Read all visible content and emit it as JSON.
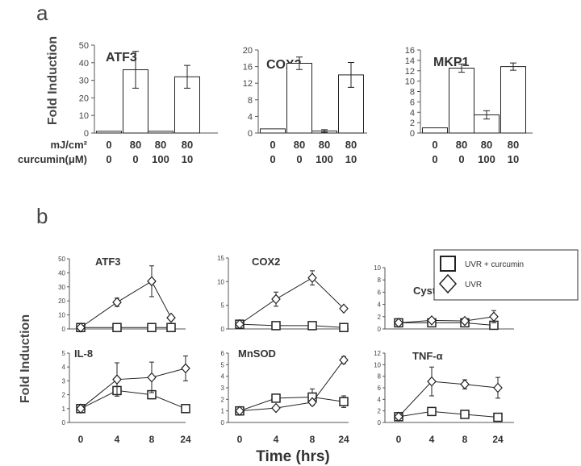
{
  "panel_a_label": "a",
  "panel_b_label": "b",
  "ylabel_a": "Fold Induction",
  "ylabel_b": "Fold Induction",
  "row_label_dose": "mJ/cm²",
  "row_label_curcumin": "curcumin(μM)",
  "dose_values": [
    "0",
    "80",
    "80",
    "80"
  ],
  "curcumin_values": [
    "0",
    "0",
    "100",
    "10"
  ],
  "xlabel_b": "Time (hrs)",
  "legend": {
    "curcumin": "UVR + curcumin",
    "uvr": "UVR"
  },
  "chart_data": [
    {
      "type": "bar",
      "title": "ATF3",
      "categories": [
        "0/0",
        "80/0",
        "80/100",
        "80/10"
      ],
      "values": [
        1,
        36,
        1,
        32
      ],
      "errors": [
        0,
        10.5,
        0,
        6.5
      ],
      "ylim": [
        0,
        50
      ],
      "yticks": [
        0,
        10,
        20,
        30,
        40,
        50
      ],
      "grid": false
    },
    {
      "type": "bar",
      "title": "COX2",
      "categories": [
        "0/0",
        "80/0",
        "80/100",
        "80/10"
      ],
      "values": [
        1,
        16.8,
        0.5,
        14
      ],
      "errors": [
        0,
        1.5,
        0.3,
        3
      ],
      "ylim": [
        0,
        20
      ],
      "yticks": [
        0,
        4,
        8,
        12,
        16,
        20
      ],
      "grid": false
    },
    {
      "type": "bar",
      "title": "MKP1",
      "categories": [
        "0/0",
        "80/0",
        "80/100",
        "80/10"
      ],
      "values": [
        1,
        12.5,
        3.5,
        12.8
      ],
      "errors": [
        0,
        0.8,
        0.8,
        0.7
      ],
      "ylim": [
        0,
        16
      ],
      "yticks": [
        0,
        2,
        4,
        6,
        8,
        10,
        12,
        14,
        16
      ],
      "grid": false
    },
    {
      "type": "line",
      "title": "ATF3",
      "x": [
        "0",
        "4",
        "8",
        "24"
      ],
      "ylim": [
        0,
        50
      ],
      "yticks": [
        0,
        10,
        20,
        30,
        40,
        50
      ],
      "series": [
        {
          "name": "UVR + curcumin",
          "values": [
            1,
            1,
            1,
            1
          ],
          "errors": [
            0,
            0,
            0,
            0
          ]
        },
        {
          "name": "UVR",
          "values": [
            1,
            19,
            34,
            8
          ],
          "errors": [
            0,
            3,
            11,
            0
          ]
        }
      ]
    },
    {
      "type": "line",
      "title": "COX2",
      "x": [
        "0",
        "4",
        "8",
        "24"
      ],
      "ylim": [
        0,
        15
      ],
      "yticks": [
        0,
        5,
        10,
        15
      ],
      "series": [
        {
          "name": "UVR + curcumin",
          "values": [
            1,
            0.7,
            0.7,
            0.3
          ],
          "errors": [
            0,
            0,
            0,
            0
          ]
        },
        {
          "name": "UVR",
          "values": [
            1,
            6.3,
            10.8,
            4.3
          ],
          "errors": [
            0,
            1.5,
            1.5,
            0
          ]
        }
      ]
    },
    {
      "type": "line",
      "title": "Cystatin M",
      "x": [
        "0",
        "4",
        "8",
        "24"
      ],
      "ylim": [
        0,
        10
      ],
      "yticks": [
        0,
        2,
        4,
        6,
        8,
        10
      ],
      "series": [
        {
          "name": "UVR + curcumin",
          "values": [
            1,
            1,
            1,
            0.6
          ],
          "errors": [
            0,
            0.3,
            0.3,
            0
          ]
        },
        {
          "name": "UVR",
          "values": [
            1,
            1.4,
            1.3,
            2
          ],
          "errors": [
            0,
            0.4,
            0.4,
            1
          ]
        }
      ]
    },
    {
      "type": "line",
      "title": "IL-8",
      "x": [
        "0",
        "4",
        "8",
        "24"
      ],
      "ylim": [
        0,
        5
      ],
      "yticks": [
        0,
        1,
        2,
        3,
        4,
        5
      ],
      "series": [
        {
          "name": "UVR + curcumin",
          "values": [
            1,
            2.3,
            2,
            1
          ],
          "errors": [
            0,
            0.3,
            0.3,
            0
          ]
        },
        {
          "name": "UVR",
          "values": [
            1,
            3.1,
            3.25,
            3.9
          ],
          "errors": [
            0,
            1.2,
            1.1,
            0.9
          ]
        }
      ]
    },
    {
      "type": "line",
      "title": "MnSOD",
      "x": [
        "0",
        "4",
        "8",
        "24"
      ],
      "ylim": [
        0,
        6
      ],
      "yticks": [
        0,
        1,
        2,
        3,
        4,
        5,
        6
      ],
      "series": [
        {
          "name": "UVR + curcumin",
          "values": [
            1,
            2.1,
            2.2,
            1.8
          ],
          "errors": [
            0,
            0.3,
            0.7,
            0.5
          ]
        },
        {
          "name": "UVR",
          "values": [
            1,
            1.25,
            1.75,
            5.4
          ],
          "errors": [
            0,
            0,
            0,
            0.3
          ]
        }
      ]
    },
    {
      "type": "line",
      "title": "TNF-α",
      "x": [
        "0",
        "4",
        "8",
        "24"
      ],
      "ylim": [
        0,
        12
      ],
      "yticks": [
        0,
        2,
        4,
        6,
        8,
        10,
        12
      ],
      "series": [
        {
          "name": "UVR + curcumin",
          "values": [
            1,
            1.9,
            1.4,
            0.9
          ],
          "errors": [
            0,
            0.3,
            0.7,
            0
          ]
        },
        {
          "name": "UVR",
          "values": [
            1,
            7.1,
            6.6,
            6
          ],
          "errors": [
            0,
            2.5,
            0.8,
            1.8
          ]
        }
      ]
    }
  ]
}
